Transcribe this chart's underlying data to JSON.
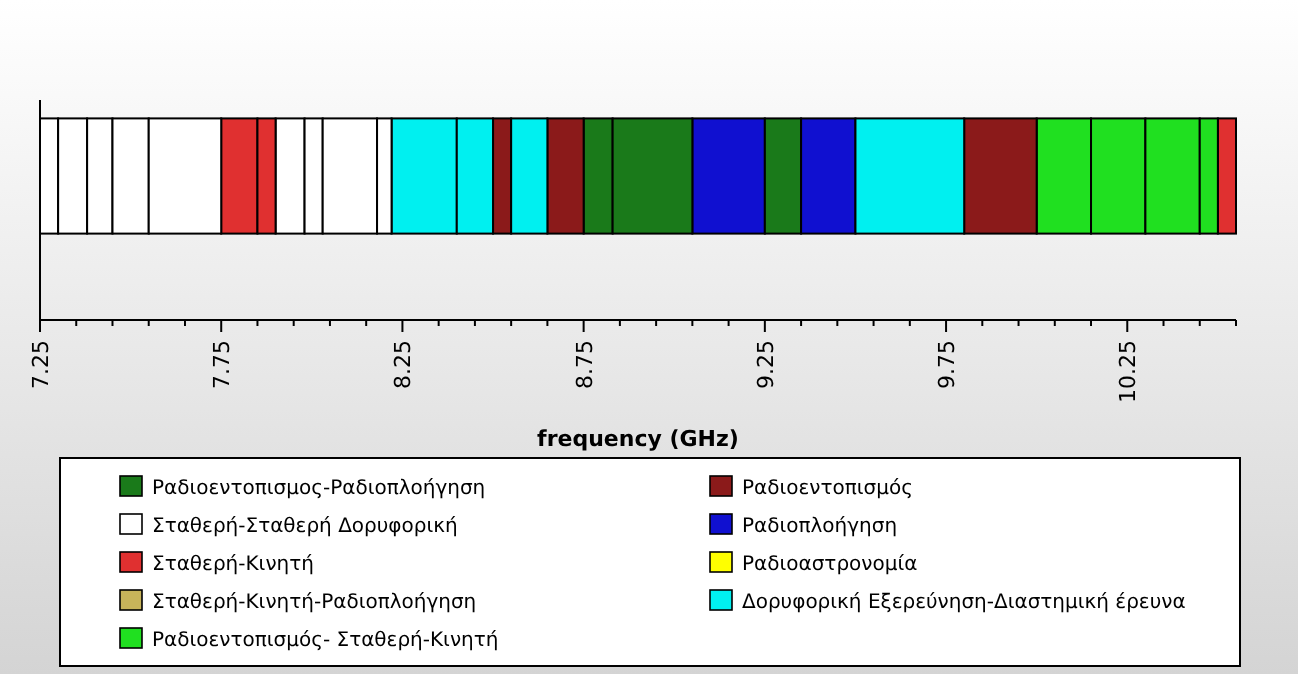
{
  "chart_data": {
    "type": "bar",
    "orientation": "horizontal",
    "xlabel": "frequency (GHz)",
    "categories": [
      null
    ],
    "xlim": [
      7.25,
      10.55
    ],
    "xticks": [
      7.25,
      {
        "value": 7.35,
        "label": null
      },
      {
        "value": 7.45,
        "label": null
      },
      {
        "value": 7.55,
        "label": null
      },
      {
        "value": 7.65,
        "label": null
      },
      7.75,
      {
        "value": 7.85,
        "label": null
      },
      {
        "value": 7.95,
        "label": null
      },
      {
        "value": 8.05,
        "label": null
      },
      {
        "value": 8.15,
        "label": null
      },
      8.25,
      {
        "value": 8.35,
        "label": null
      },
      {
        "value": 8.45,
        "label": null
      },
      {
        "value": 8.55,
        "label": null
      },
      {
        "value": 8.65,
        "label": null
      },
      8.75,
      {
        "value": 8.85,
        "label": null
      },
      {
        "value": 8.95,
        "label": null
      },
      {
        "value": 9.05,
        "label": null
      },
      {
        "value": 9.15,
        "label": null
      },
      9.25,
      {
        "value": 9.35,
        "label": null
      },
      {
        "value": 9.45,
        "label": null
      },
      {
        "value": 9.55,
        "label": null
      },
      {
        "value": 9.65,
        "label": null
      },
      9.75,
      {
        "value": 9.85,
        "label": null
      },
      {
        "value": 9.95,
        "label": null
      },
      {
        "value": 10.05,
        "label": null
      },
      {
        "value": 10.15,
        "label": null
      },
      10.25,
      {
        "value": 10.35,
        "label": null
      },
      {
        "value": 10.45,
        "label": null
      },
      {
        "value": 10.55,
        "label": null
      }
    ],
    "legend": "bottom",
    "series": [
      {
        "name": "Ραδιοεντοπισμος-Ραδιοπλοήγηση",
        "color": "#1a7a1a",
        "base": [
          8.75
        ],
        "values": [
          0.08
        ]
      },
      {
        "name": "Ραδιοεντοπισμός",
        "color": "#8b1a1a",
        "base": [
          8.5
        ],
        "values": [
          0.05
        ]
      },
      {
        "name": "Σταθερή-Σταθερή Δορυφορική",
        "color": "#ffffff",
        "base": [
          7.25
        ],
        "values": [
          0.05
        ]
      },
      {
        "name": "Ραδιοπλοήγηση",
        "color": "#1010d0",
        "base": [
          9.05
        ],
        "values": [
          0.2
        ]
      },
      {
        "name": "Σταθερή-Κινητή",
        "color": "#e03030",
        "base": [
          7.75
        ],
        "values": [
          0.1
        ]
      },
      {
        "name": "Ραδιοαστρονομία",
        "color": "#ffff00",
        "base": [
          null
        ],
        "values": [
          null
        ]
      },
      {
        "name": "Σταθερή-Κινητή-Ραδιοπλοήγηση",
        "color": "#c8b45a",
        "base": [
          null
        ],
        "values": [
          null
        ]
      },
      {
        "name": "Δορυφορική Εξερεύνηση-Διαστημική έρευνα",
        "color": "#00f0f0",
        "base": [
          8.22
        ],
        "values": [
          0.18
        ]
      },
      {
        "name": "Ραδιοεντοπισμός- Σταθερή-Κινητή",
        "color": "#20e020",
        "base": [
          10.0
        ],
        "values": [
          0.15
        ]
      },
      {
        "color": "#1a7a1a",
        "base": [
          8.83
        ],
        "values": [
          0.22
        ]
      },
      {
        "color": "#1a7a1a",
        "base": [
          9.25
        ],
        "values": [
          0.1
        ]
      },
      {
        "color": "#8b1a1a",
        "base": [
          8.65
        ],
        "values": [
          0.1
        ]
      },
      {
        "color": "#8b1a1a",
        "base": [
          9.8
        ],
        "values": [
          0.2
        ]
      },
      {
        "color": "#ffffff",
        "base": [
          7.3
        ],
        "values": [
          0.08
        ]
      },
      {
        "color": "#ffffff",
        "base": [
          7.38
        ],
        "values": [
          0.07
        ]
      },
      {
        "color": "#ffffff",
        "base": [
          7.45
        ],
        "values": [
          0.1
        ]
      },
      {
        "color": "#ffffff",
        "base": [
          7.55
        ],
        "values": [
          0.2
        ]
      },
      {
        "color": "#ffffff",
        "base": [
          7.9
        ],
        "values": [
          0.08
        ]
      },
      {
        "color": "#ffffff",
        "base": [
          7.98
        ],
        "values": [
          0.05
        ]
      },
      {
        "color": "#ffffff",
        "base": [
          8.03
        ],
        "values": [
          0.15
        ]
      },
      {
        "color": "#ffffff",
        "base": [
          8.18
        ],
        "values": [
          0.04
        ]
      },
      {
        "color": "#1010d0",
        "base": [
          9.35
        ],
        "values": [
          0.15
        ]
      },
      {
        "color": "#e03030",
        "base": [
          7.85
        ],
        "values": [
          0.05
        ]
      },
      {
        "color": "#e03030",
        "base": [
          10.5
        ],
        "values": [
          0.05
        ]
      },
      {
        "color": "#00f0f0",
        "base": [
          8.4
        ],
        "values": [
          0.1
        ]
      },
      {
        "color": "#00f0f0",
        "base": [
          8.55
        ],
        "values": [
          0.1
        ]
      },
      {
        "color": "#00f0f0",
        "base": [
          9.5
        ],
        "values": [
          0.3
        ]
      },
      {
        "color": "#20e020",
        "base": [
          10.15
        ],
        "values": [
          0.15
        ]
      },
      {
        "color": "#20e020",
        "base": [
          10.3
        ],
        "values": [
          0.15
        ]
      },
      {
        "color": "#20e020",
        "base": [
          10.45
        ],
        "values": [
          0.05
        ]
      }
    ]
  }
}
